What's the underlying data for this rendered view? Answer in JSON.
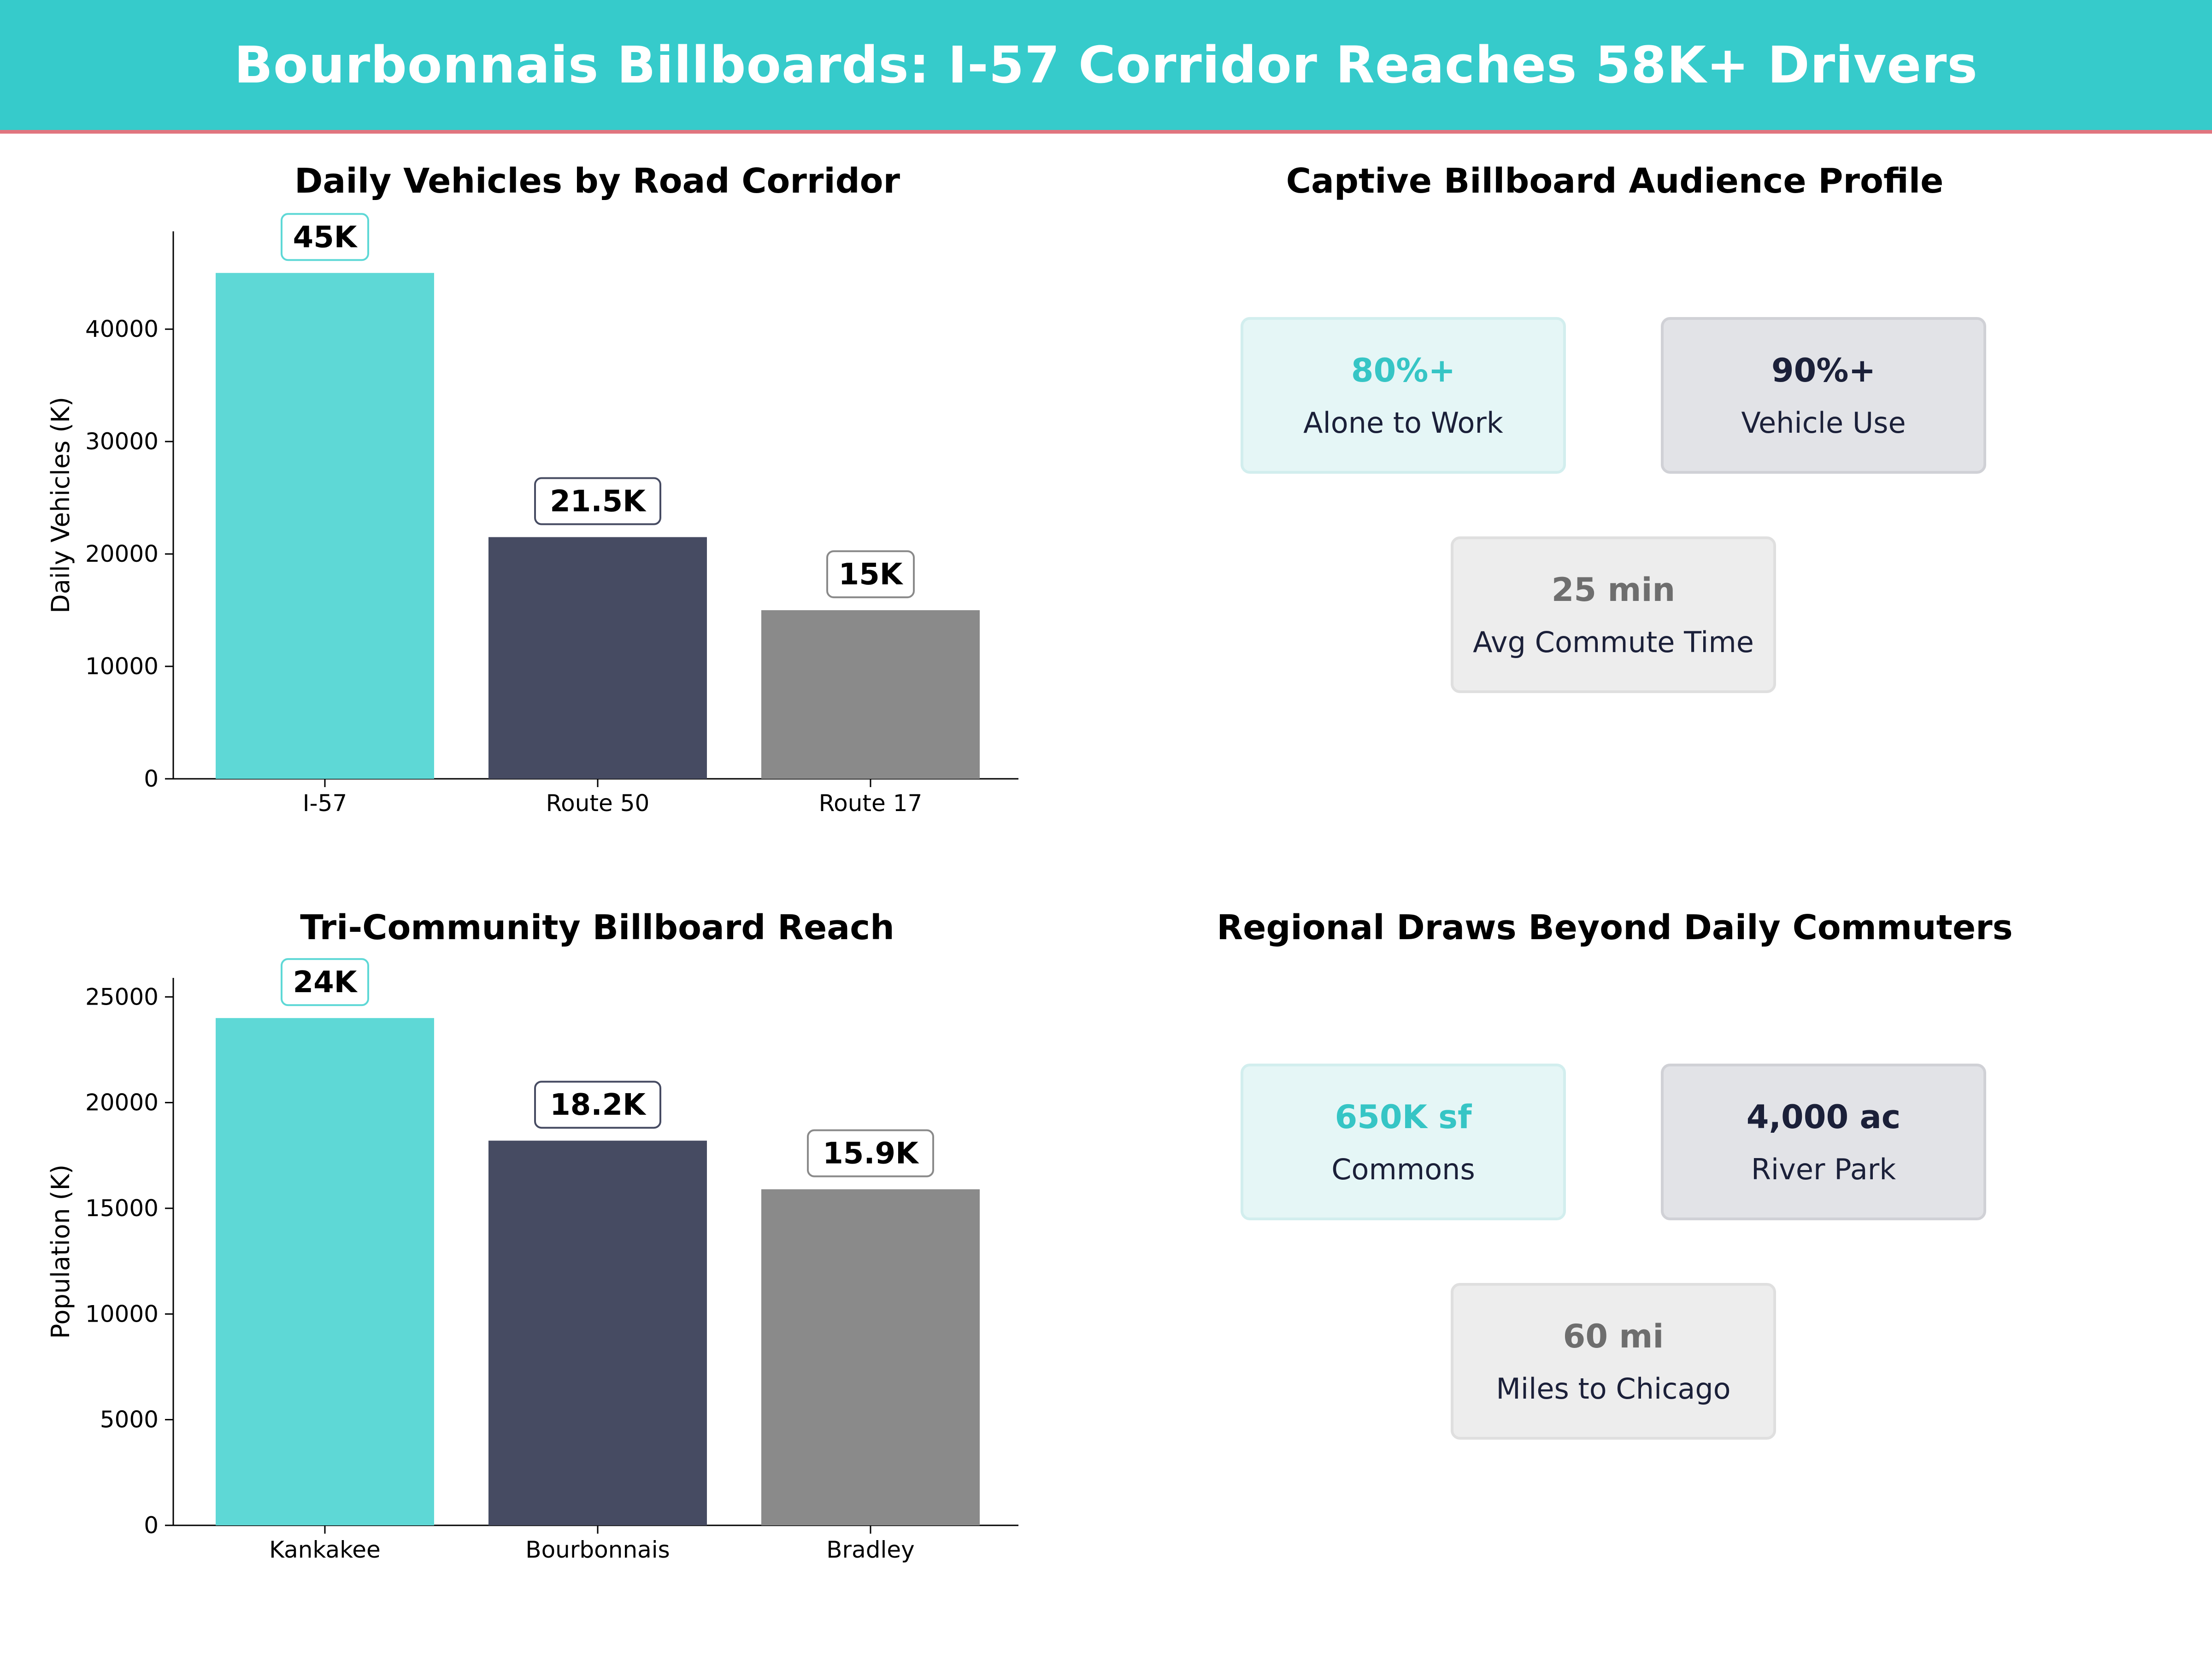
{
  "header": {
    "title": "Bourbonnais Billboards: I-57 Corridor Reaches 58K+ Drivers",
    "bg_color": "#36cbcb",
    "accent_line_color": "#e0757f"
  },
  "chart_data": [
    {
      "type": "bar",
      "title": "Daily Vehicles by Road Corridor",
      "xlabel": "",
      "ylabel": "Daily Vehicles (K)",
      "categories": [
        "I-57",
        "Route 50",
        "Route 17"
      ],
      "values": [
        45000,
        21500,
        15000
      ],
      "value_labels": [
        "45K",
        "21.5K",
        "15K"
      ],
      "colors": [
        "#5ed8d6",
        "#464b62",
        "#8a8a8a"
      ],
      "ylim": [
        0,
        48700
      ],
      "yticks": [
        0,
        10000,
        20000,
        30000,
        40000
      ],
      "ytick_labels": [
        "0",
        "10000",
        "20000",
        "30000",
        "40000"
      ],
      "grid": false
    },
    {
      "type": "bar",
      "title": "Tri-Community Billboard Reach",
      "xlabel": "",
      "ylabel": "Population (K)",
      "categories": [
        "Kankakee",
        "Bourbonnais",
        "Bradley"
      ],
      "values": [
        24000,
        18200,
        15900
      ],
      "value_labels": [
        "24K",
        "18.2K",
        "15.9K"
      ],
      "colors": [
        "#5ed8d6",
        "#464b62",
        "#8a8a8a"
      ],
      "ylim": [
        0,
        25900
      ],
      "yticks": [
        0,
        5000,
        10000,
        15000,
        20000,
        25000
      ],
      "ytick_labels": [
        "0",
        "5000",
        "10000",
        "15000",
        "20000",
        "25000"
      ],
      "grid": false
    }
  ],
  "profile": {
    "title": "Captive Billboard Audience Profile",
    "cards": [
      {
        "value": "80%+",
        "label": "Alone to Work"
      },
      {
        "value": "90%+",
        "label": "Vehicle Use"
      },
      {
        "value": "25 min",
        "label": "Avg Commute Time"
      }
    ]
  },
  "regional": {
    "title": "Regional Draws Beyond Daily Commuters",
    "cards": [
      {
        "value": "650K sf",
        "label": "Commons"
      },
      {
        "value": "4,000 ac",
        "label": "River Park"
      },
      {
        "value": "60 mi",
        "label": "Miles to Chicago"
      }
    ]
  }
}
